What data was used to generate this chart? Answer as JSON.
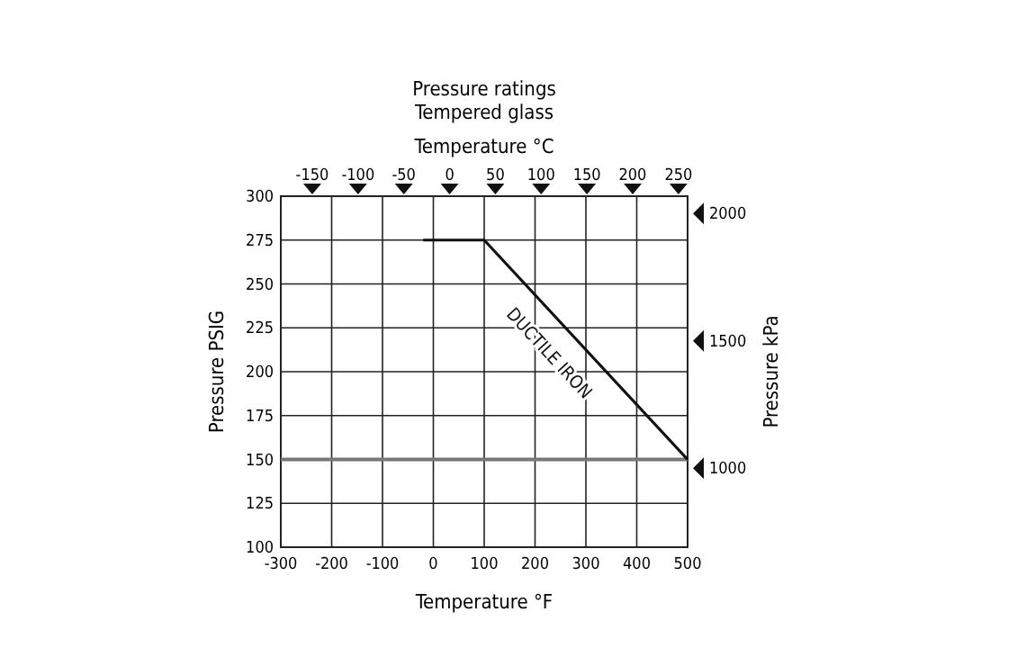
{
  "chart_data": {
    "type": "line",
    "title": "Pressure ratings",
    "subtitle": "Tempered glass",
    "xlabel": "Temperature °F",
    "ylabel": "Pressure PSIG",
    "y2label": "Pressure kPa",
    "x2label": "Temperature °C",
    "xlim": [
      -300,
      500
    ],
    "xticks": [
      -300,
      -200,
      -100,
      0,
      100,
      200,
      300,
      400,
      500
    ],
    "ylim": [
      100,
      300
    ],
    "yticks": [
      100,
      125,
      150,
      175,
      200,
      225,
      250,
      275,
      300
    ],
    "x2lim": [
      -184.4,
      260
    ],
    "x2ticks": [
      -150,
      -100,
      -50,
      0,
      50,
      100,
      150,
      200,
      250
    ],
    "y2lim": [
      689.5,
      2068.4
    ],
    "y2ticks": [
      1000,
      1500,
      2000
    ],
    "grid": true,
    "marker": "none",
    "line_style": "solid",
    "ref_lines": [
      {
        "axis": "y",
        "value": 150,
        "color": "#777777"
      }
    ],
    "series": [
      {
        "name": "DUCTILE IRON",
        "color": "#111111",
        "x": [
          -20,
          100,
          500
        ],
        "values": [
          275,
          275,
          150
        ]
      }
    ]
  }
}
